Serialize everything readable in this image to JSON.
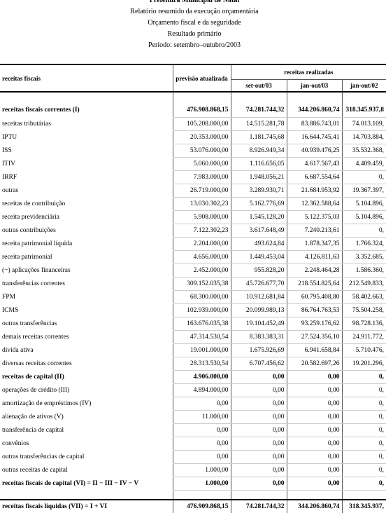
{
  "header": {
    "title_lines": [
      "Prefeitura Municipal de Natal",
      "Relatório resumido da execução orçamentária",
      "Orçamento fiscal e da seguridade",
      "Resultado primário",
      "Período: setembro–outubro/2003"
    ]
  },
  "table": {
    "label_header": "receitas fiscais",
    "forecast_header": "previsão atualizada",
    "realized_header": "receitas realizadas",
    "periods": [
      "set-out/03",
      "jan-out/03",
      "jan-out/02"
    ],
    "rows": [
      {
        "label": "receitas fiscais correntes (I)",
        "bold": true,
        "values": [
          "476.908.868,15",
          "74.281.744,32",
          "344.206.860,74",
          "318.345.937,8"
        ]
      },
      {
        "label": "receitas tributárias",
        "values": [
          "105.208.000,00",
          "14.515.281,78",
          "83.886.743,01",
          "74.013.109,"
        ]
      },
      {
        "label": "IPTU",
        "values": [
          "20.353.000,00",
          "1.181.745,68",
          "16.644.745,41",
          "14.703.884,"
        ]
      },
      {
        "label": "ISS",
        "values": [
          "53.076.000,00",
          "8.926.949,34",
          "40.939.476,25",
          "35.532.368,"
        ]
      },
      {
        "label": "ITIV",
        "values": [
          "5.060.000,00",
          "1.116.656,05",
          "4.617.567,43",
          "4.409.459,"
        ]
      },
      {
        "label": "IRRF",
        "values": [
          "7.983.000,00",
          "1.948.056,21",
          "6.687.554,64",
          "0,"
        ]
      },
      {
        "label": "outras",
        "values": [
          "26.719.000,00",
          "3.289.930,71",
          "21.684.953,92",
          "19.367.397,"
        ]
      },
      {
        "label": "receitas de contribuição",
        "values": [
          "13.030.302,23",
          "5.162.776,69",
          "12.362.588,64",
          "5.104.896,"
        ]
      },
      {
        "label": "receita previdenciária",
        "values": [
          "5.908.000,00",
          "1.545.128,20",
          "5.122.375,03",
          "5.104.896,"
        ]
      },
      {
        "label": "outras contribuições",
        "values": [
          "7.122.302,23",
          "3.617.648,49",
          "7.240.213,61",
          "0,"
        ]
      },
      {
        "label": "receita patrimonial líquida",
        "values": [
          "2.204.000,00",
          "493.624,84",
          "1.878.347,35",
          "1.766.324,"
        ]
      },
      {
        "label": "receita patrimonial",
        "values": [
          "4.656.000,00",
          "1.449.453,04",
          "4.126.811,63",
          "3.352.685,"
        ]
      },
      {
        "label": "(−) aplicações financeiras",
        "values": [
          "2.452.000,00",
          "955.828,20",
          "2.248.464,28",
          "1.586.360,"
        ]
      },
      {
        "label": "transferências correntes",
        "values": [
          "309.152.035,38",
          "45.726.677,70",
          "218.554.825,64",
          "212.549.833,"
        ]
      },
      {
        "label": "FPM",
        "values": [
          "68.300.000,00",
          "10.912.681,84",
          "60.795.408,80",
          "58.402.663,"
        ]
      },
      {
        "label": "ICMS",
        "values": [
          "102.939.000,00",
          "20.099.989,13",
          "86.764.763,53",
          "75.504.258,"
        ]
      },
      {
        "label": "outras transferências",
        "values": [
          "163.676.035,38",
          "19.104.452,49",
          "93.259.176,62",
          "98.728.136,"
        ]
      },
      {
        "label": "demais receitas correntes",
        "values": [
          "47.314.530,54",
          "8.383.383,31",
          "27.524.356,10",
          "24.911.772,"
        ]
      },
      {
        "label": "dívida ativa",
        "values": [
          "19.001.000,00",
          "1.675.926,69",
          "6.941.658,84",
          "5.710.476,"
        ]
      },
      {
        "label": "diversas receitas correntes",
        "values": [
          "28.313.530,54",
          "6.707.456,62",
          "20.582.697,26",
          "19.201.296,"
        ]
      },
      {
        "label": "receitas de capital (II)",
        "bold": true,
        "values": [
          "4.906.000,00",
          "0,00",
          "0,00",
          "0,"
        ]
      },
      {
        "label": "operações de crédito (III)",
        "values": [
          "4.894.000,00",
          "0,00",
          "0,00",
          "0,"
        ]
      },
      {
        "label": "amortização de empréstimos (IV)",
        "values": [
          "0,00",
          "0,00",
          "0,00",
          "0,"
        ]
      },
      {
        "label": "alienação de ativos (V)",
        "values": [
          "11.000,00",
          "0,00",
          "0,00",
          "0,"
        ]
      },
      {
        "label": "transferência de capital",
        "values": [
          "0,00",
          "0,00",
          "0,00",
          "0,"
        ]
      },
      {
        "label": "convênios",
        "values": [
          "0,00",
          "0,00",
          "0,00",
          "0,"
        ]
      },
      {
        "label": "outras transferências de capital",
        "values": [
          "0,00",
          "0,00",
          "0,00",
          "0,"
        ]
      },
      {
        "label": "outras receitas de capital",
        "values": [
          "1.000,00",
          "0,00",
          "0,00",
          "0,"
        ]
      },
      {
        "label": "receitas fiscais de capital (VI) = II − III − IV − V",
        "bold": true,
        "values": [
          "1.000,00",
          "0,00",
          "0,00",
          "0,"
        ]
      }
    ],
    "total": {
      "label": "receitas fiscais líquidas (VII) = I + VI",
      "bold": true,
      "values": [
        "476.909.868,15",
        "74.281.744,32",
        "344.206.860,74",
        "318.345.937,"
      ]
    }
  }
}
